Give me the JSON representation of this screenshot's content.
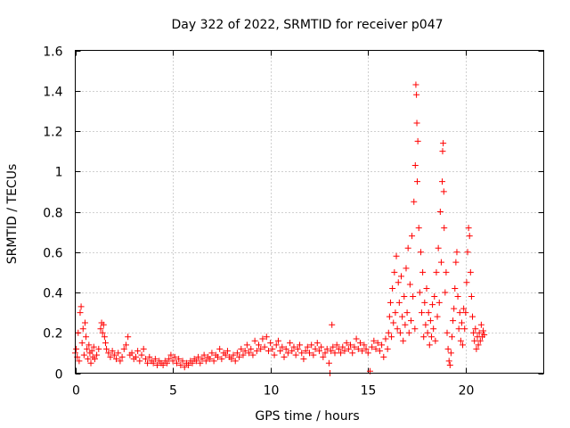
{
  "chart_data": {
    "type": "scatter",
    "title": "Day 322 of 2022, SRMTID for receiver p047",
    "xlabel": "GPS time / hours",
    "ylabel": "SRMTID / TECUs",
    "xlim": [
      0,
      24
    ],
    "ylim": [
      0,
      1.6
    ],
    "x_ticks": [
      0,
      5,
      10,
      15,
      20
    ],
    "y_ticks": [
      0,
      0.2,
      0.4,
      0.6,
      0.8,
      1,
      1.2,
      1.4,
      1.6
    ],
    "x_tick_labels": [
      "0",
      "5",
      "10",
      "15",
      "20"
    ],
    "y_tick_labels": [
      "0",
      "0.2",
      "0.4",
      "0.6",
      "0.8",
      "1",
      "1.2",
      "1.4",
      "1.6"
    ],
    "grid": true,
    "marker": "plus",
    "color": "#ff0000",
    "series": [
      {
        "name": "SRMTID",
        "points": [
          [
            0.0,
            0.1
          ],
          [
            0.05,
            0.12
          ],
          [
            0.1,
            0.08
          ],
          [
            0.15,
            0.2
          ],
          [
            0.2,
            0.06
          ],
          [
            0.25,
            0.3
          ],
          [
            0.3,
            0.33
          ],
          [
            0.35,
            0.15
          ],
          [
            0.4,
            0.22
          ],
          [
            0.45,
            0.09
          ],
          [
            0.5,
            0.25
          ],
          [
            0.55,
            0.18
          ],
          [
            0.6,
            0.12
          ],
          [
            0.65,
            0.07
          ],
          [
            0.7,
            0.14
          ],
          [
            0.75,
            0.1
          ],
          [
            0.8,
            0.05
          ],
          [
            0.85,
            0.11
          ],
          [
            0.9,
            0.08
          ],
          [
            0.95,
            0.13
          ],
          [
            1.0,
            0.07
          ],
          [
            1.1,
            0.09
          ],
          [
            1.2,
            0.12
          ],
          [
            1.3,
            0.22
          ],
          [
            1.35,
            0.25
          ],
          [
            1.4,
            0.2
          ],
          [
            1.45,
            0.24
          ],
          [
            1.5,
            0.18
          ],
          [
            1.55,
            0.15
          ],
          [
            1.6,
            0.12
          ],
          [
            1.7,
            0.1
          ],
          [
            1.8,
            0.08
          ],
          [
            1.9,
            0.11
          ],
          [
            2.0,
            0.09
          ],
          [
            2.1,
            0.07
          ],
          [
            2.2,
            0.1
          ],
          [
            2.3,
            0.06
          ],
          [
            2.4,
            0.08
          ],
          [
            2.5,
            0.12
          ],
          [
            2.6,
            0.14
          ],
          [
            2.7,
            0.18
          ],
          [
            2.8,
            0.09
          ],
          [
            2.9,
            0.1
          ],
          [
            3.0,
            0.07
          ],
          [
            3.1,
            0.08
          ],
          [
            3.2,
            0.11
          ],
          [
            3.3,
            0.06
          ],
          [
            3.4,
            0.09
          ],
          [
            3.5,
            0.12
          ],
          [
            3.6,
            0.07
          ],
          [
            3.7,
            0.05
          ],
          [
            3.8,
            0.08
          ],
          [
            3.9,
            0.06
          ],
          [
            4.0,
            0.05
          ],
          [
            4.1,
            0.07
          ],
          [
            4.2,
            0.04
          ],
          [
            4.3,
            0.06
          ],
          [
            4.4,
            0.05
          ],
          [
            4.5,
            0.04
          ],
          [
            4.6,
            0.06
          ],
          [
            4.7,
            0.05
          ],
          [
            4.8,
            0.07
          ],
          [
            4.9,
            0.09
          ],
          [
            5.0,
            0.06
          ],
          [
            5.1,
            0.08
          ],
          [
            5.2,
            0.05
          ],
          [
            5.3,
            0.07
          ],
          [
            5.4,
            0.04
          ],
          [
            5.5,
            0.06
          ],
          [
            5.6,
            0.03
          ],
          [
            5.7,
            0.05
          ],
          [
            5.8,
            0.04
          ],
          [
            5.9,
            0.06
          ],
          [
            6.0,
            0.05
          ],
          [
            6.1,
            0.07
          ],
          [
            6.2,
            0.06
          ],
          [
            6.3,
            0.08
          ],
          [
            6.4,
            0.05
          ],
          [
            6.5,
            0.07
          ],
          [
            6.6,
            0.09
          ],
          [
            6.7,
            0.06
          ],
          [
            6.8,
            0.08
          ],
          [
            6.9,
            0.07
          ],
          [
            7.0,
            0.1
          ],
          [
            7.1,
            0.06
          ],
          [
            7.2,
            0.09
          ],
          [
            7.3,
            0.08
          ],
          [
            7.4,
            0.12
          ],
          [
            7.5,
            0.07
          ],
          [
            7.6,
            0.1
          ],
          [
            7.7,
            0.09
          ],
          [
            7.8,
            0.11
          ],
          [
            7.9,
            0.08
          ],
          [
            8.0,
            0.07
          ],
          [
            8.1,
            0.09
          ],
          [
            8.2,
            0.06
          ],
          [
            8.3,
            0.1
          ],
          [
            8.4,
            0.08
          ],
          [
            8.5,
            0.12
          ],
          [
            8.6,
            0.09
          ],
          [
            8.7,
            0.11
          ],
          [
            8.8,
            0.14
          ],
          [
            8.9,
            0.1
          ],
          [
            9.0,
            0.12
          ],
          [
            9.1,
            0.09
          ],
          [
            9.2,
            0.16
          ],
          [
            9.3,
            0.11
          ],
          [
            9.4,
            0.14
          ],
          [
            9.5,
            0.12
          ],
          [
            9.6,
            0.17
          ],
          [
            9.7,
            0.13
          ],
          [
            9.8,
            0.18
          ],
          [
            9.9,
            0.11
          ],
          [
            10.0,
            0.15
          ],
          [
            10.1,
            0.12
          ],
          [
            10.2,
            0.09
          ],
          [
            10.3,
            0.14
          ],
          [
            10.4,
            0.16
          ],
          [
            10.5,
            0.11
          ],
          [
            10.6,
            0.13
          ],
          [
            10.7,
            0.08
          ],
          [
            10.8,
            0.12
          ],
          [
            10.9,
            0.1
          ],
          [
            11.0,
            0.15
          ],
          [
            11.1,
            0.11
          ],
          [
            11.2,
            0.13
          ],
          [
            11.3,
            0.09
          ],
          [
            11.4,
            0.12
          ],
          [
            11.5,
            0.14
          ],
          [
            11.6,
            0.1
          ],
          [
            11.7,
            0.07
          ],
          [
            11.8,
            0.11
          ],
          [
            11.9,
            0.13
          ],
          [
            12.0,
            0.1
          ],
          [
            12.1,
            0.14
          ],
          [
            12.2,
            0.09
          ],
          [
            12.3,
            0.12
          ],
          [
            12.4,
            0.15
          ],
          [
            12.5,
            0.11
          ],
          [
            12.6,
            0.13
          ],
          [
            12.7,
            0.08
          ],
          [
            12.8,
            0.1
          ],
          [
            12.9,
            0.12
          ],
          [
            13.0,
            0.05
          ],
          [
            13.05,
            0.0
          ],
          [
            13.1,
            0.11
          ],
          [
            13.15,
            0.24
          ],
          [
            13.2,
            0.13
          ],
          [
            13.3,
            0.1
          ],
          [
            13.4,
            0.14
          ],
          [
            13.5,
            0.12
          ],
          [
            13.6,
            0.1
          ],
          [
            13.7,
            0.13
          ],
          [
            13.8,
            0.11
          ],
          [
            13.9,
            0.15
          ],
          [
            14.0,
            0.12
          ],
          [
            14.1,
            0.14
          ],
          [
            14.2,
            0.1
          ],
          [
            14.3,
            0.13
          ],
          [
            14.4,
            0.17
          ],
          [
            14.5,
            0.12
          ],
          [
            14.6,
            0.15
          ],
          [
            14.7,
            0.11
          ],
          [
            14.8,
            0.14
          ],
          [
            14.9,
            0.12
          ],
          [
            15.0,
            0.1
          ],
          [
            15.1,
            0.01
          ],
          [
            15.2,
            0.13
          ],
          [
            15.3,
            0.16
          ],
          [
            15.4,
            0.12
          ],
          [
            15.5,
            0.15
          ],
          [
            15.6,
            0.11
          ],
          [
            15.7,
            0.14
          ],
          [
            15.8,
            0.08
          ],
          [
            15.9,
            0.17
          ],
          [
            16.0,
            0.12
          ],
          [
            16.05,
            0.2
          ],
          [
            16.1,
            0.28
          ],
          [
            16.15,
            0.35
          ],
          [
            16.2,
            0.18
          ],
          [
            16.25,
            0.42
          ],
          [
            16.3,
            0.25
          ],
          [
            16.35,
            0.5
          ],
          [
            16.4,
            0.3
          ],
          [
            16.45,
            0.58
          ],
          [
            16.5,
            0.22
          ],
          [
            16.55,
            0.45
          ],
          [
            16.6,
            0.35
          ],
          [
            16.65,
            0.2
          ],
          [
            16.7,
            0.48
          ],
          [
            16.75,
            0.28
          ],
          [
            16.8,
            0.16
          ],
          [
            16.85,
            0.38
          ],
          [
            16.9,
            0.24
          ],
          [
            16.95,
            0.52
          ],
          [
            17.0,
            0.3
          ],
          [
            17.05,
            0.62
          ],
          [
            17.1,
            0.2
          ],
          [
            17.15,
            0.44
          ],
          [
            17.2,
            0.26
          ],
          [
            17.25,
            0.68
          ],
          [
            17.3,
            0.38
          ],
          [
            17.35,
            0.85
          ],
          [
            17.4,
            0.22
          ],
          [
            17.42,
            1.03
          ],
          [
            17.45,
            1.43
          ],
          [
            17.48,
            1.38
          ],
          [
            17.5,
            1.24
          ],
          [
            17.52,
            0.95
          ],
          [
            17.55,
            1.15
          ],
          [
            17.6,
            0.72
          ],
          [
            17.65,
            0.4
          ],
          [
            17.7,
            0.6
          ],
          [
            17.75,
            0.3
          ],
          [
            17.8,
            0.5
          ],
          [
            17.85,
            0.18
          ],
          [
            17.9,
            0.35
          ],
          [
            17.95,
            0.24
          ],
          [
            18.0,
            0.42
          ],
          [
            18.05,
            0.2
          ],
          [
            18.1,
            0.3
          ],
          [
            18.15,
            0.14
          ],
          [
            18.2,
            0.26
          ],
          [
            18.25,
            0.18
          ],
          [
            18.3,
            0.34
          ],
          [
            18.35,
            0.22
          ],
          [
            18.4,
            0.38
          ],
          [
            18.45,
            0.16
          ],
          [
            18.5,
            0.5
          ],
          [
            18.55,
            0.28
          ],
          [
            18.6,
            0.62
          ],
          [
            18.65,
            0.35
          ],
          [
            18.7,
            0.8
          ],
          [
            18.75,
            0.55
          ],
          [
            18.8,
            0.95
          ],
          [
            18.82,
            1.1
          ],
          [
            18.85,
            1.14
          ],
          [
            18.88,
            0.9
          ],
          [
            18.9,
            0.72
          ],
          [
            18.95,
            0.4
          ],
          [
            19.0,
            0.5
          ],
          [
            19.05,
            0.2
          ],
          [
            19.1,
            0.12
          ],
          [
            19.15,
            0.06
          ],
          [
            19.2,
            0.04
          ],
          [
            19.25,
            0.1
          ],
          [
            19.3,
            0.18
          ],
          [
            19.35,
            0.26
          ],
          [
            19.4,
            0.32
          ],
          [
            19.45,
            0.42
          ],
          [
            19.5,
            0.55
          ],
          [
            19.55,
            0.6
          ],
          [
            19.6,
            0.38
          ],
          [
            19.65,
            0.22
          ],
          [
            19.7,
            0.3
          ],
          [
            19.75,
            0.16
          ],
          [
            19.8,
            0.25
          ],
          [
            19.85,
            0.14
          ],
          [
            19.9,
            0.32
          ],
          [
            19.95,
            0.22
          ],
          [
            20.0,
            0.3
          ],
          [
            20.05,
            0.45
          ],
          [
            20.1,
            0.6
          ],
          [
            20.15,
            0.72
          ],
          [
            20.2,
            0.68
          ],
          [
            20.25,
            0.5
          ],
          [
            20.3,
            0.38
          ],
          [
            20.35,
            0.28
          ],
          [
            20.4,
            0.2
          ],
          [
            20.45,
            0.16
          ],
          [
            20.5,
            0.22
          ],
          [
            20.55,
            0.12
          ],
          [
            20.6,
            0.18
          ],
          [
            20.65,
            0.14
          ],
          [
            20.7,
            0.2
          ],
          [
            20.75,
            0.16
          ],
          [
            20.8,
            0.24
          ],
          [
            20.85,
            0.18
          ],
          [
            20.9,
            0.21
          ],
          [
            20.95,
            0.19
          ]
        ]
      }
    ]
  }
}
